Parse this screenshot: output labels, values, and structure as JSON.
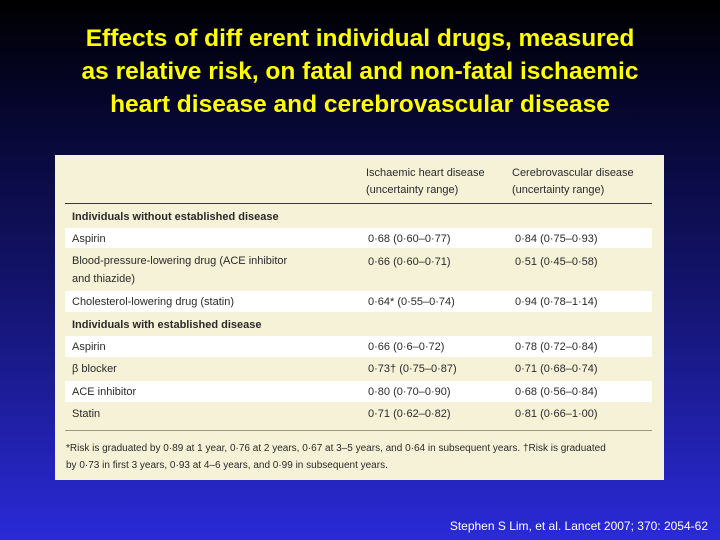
{
  "title_lines": [
    "Effects of diff erent individual drugs, measured",
    "as relative risk, on fatal and non-fatal ischaemic",
    "heart disease and cerebrovascular disease"
  ],
  "table": {
    "col_ihd": [
      "Ischaemic heart disease",
      "(uncertainty range)"
    ],
    "col_cvd": [
      "Cerebrovascular disease",
      "(uncertainty range)"
    ],
    "sections": [
      {
        "heading": "Individuals without established disease",
        "rows": [
          {
            "drug": "Aspirin",
            "ihd": "0·68 (0·60–0·77)",
            "cvd": "0·84 (0·75–0·93)"
          },
          {
            "drug": "Blood-pressure-lowering drug (ACE inhibitor",
            "drug2": "and thiazide)",
            "ihd": "0·66 (0·60–0·71)",
            "cvd": "0·51 (0·45–0·58)"
          },
          {
            "drug": "Cholesterol-lowering drug (statin)",
            "ihd": "0·64* (0·55–0·74)",
            "cvd": "0·94 (0·78–1·14)"
          }
        ]
      },
      {
        "heading": "Individuals with established disease",
        "rows": [
          {
            "drug": "Aspirin",
            "ihd": "0·66 (0·6–0·72)",
            "cvd": "0·78 (0·72–0·84)"
          },
          {
            "drug": "β blocker",
            "ihd": "0·73† (0·75–0·87)",
            "cvd": "0·71 (0·68–0·74)"
          },
          {
            "drug": "ACE inhibitor",
            "ihd": "0·80 (0·70–0·90)",
            "cvd": "0·68 (0·56–0·84)"
          },
          {
            "drug": "Statin",
            "ihd": "0·71 (0·62–0·82)",
            "cvd": "0·81 (0·66–1·00)"
          }
        ]
      }
    ],
    "footnote_lines": [
      "*Risk is graduated by 0·89 at 1 year, 0·76 at 2 years, 0·67 at 3–5 years, and 0·64 in subsequent years. †Risk is graduated",
      "by 0·73 in first 3 years, 0·93 at 4–6 years, and 0·99 in subsequent years."
    ]
  },
  "citation": "Stephen S Lim, et al. Lancet 2007; 370: 2054-62",
  "colors": {
    "title": "#ffff00",
    "panel": "#f5f2d8",
    "band": "#ffffff",
    "citation": "#ffffff"
  }
}
